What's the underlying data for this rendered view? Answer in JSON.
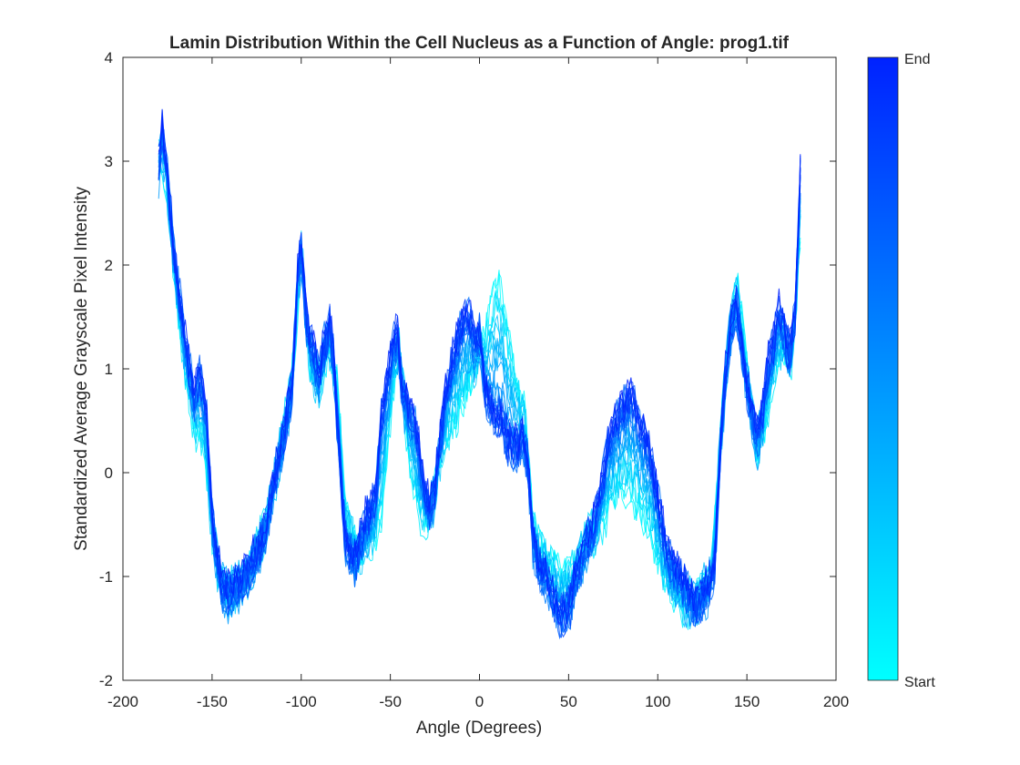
{
  "chart_data": {
    "type": "line",
    "title": "Lamin Distribution Within the Cell Nucleus as a Function of Angle: prog1.tif",
    "xlabel": "Angle (Degrees)",
    "ylabel": "Standardized Average Grayscale Pixel Intensity",
    "xlim": [
      -200,
      200
    ],
    "ylim": [
      -2,
      4
    ],
    "xticks": [
      "-200",
      "-150",
      "-100",
      "-50",
      "0",
      "50",
      "100",
      "150",
      "200"
    ],
    "yticks": [
      "-2",
      "-1",
      "0",
      "1",
      "2",
      "3",
      "4"
    ],
    "grid": false,
    "colormap": {
      "start_color": "#00ffff",
      "end_color": "#0022ff"
    },
    "colorbar": {
      "top_label": "End",
      "bottom_label": "Start",
      "placement": "right"
    },
    "series": [
      {
        "x": [
          -180,
          -178,
          -175,
          -172,
          -170,
          -165,
          -160,
          -157,
          -153,
          -150,
          -145,
          -140,
          -135,
          -130,
          -125,
          -120,
          -115,
          -110,
          -105,
          -102,
          -100,
          -97,
          -93,
          -90,
          -87,
          -84,
          -82,
          -80,
          -77,
          -75,
          -72,
          -70,
          -67,
          -64,
          -61,
          -58,
          -55,
          -52,
          -49,
          -46,
          -43,
          -40,
          -37,
          -34,
          -31,
          -28,
          -25,
          -22,
          -19,
          -16,
          -13,
          -10,
          -7,
          -5,
          -3,
          0,
          3,
          6,
          9,
          12,
          15,
          18,
          21,
          24,
          27,
          30,
          33,
          36,
          39,
          42,
          45,
          48,
          51,
          54,
          57,
          60,
          63,
          66,
          69,
          72,
          75,
          78,
          81,
          84,
          87,
          90,
          93,
          96,
          99,
          102,
          105,
          108,
          111,
          114,
          117,
          120,
          123,
          126,
          129,
          132,
          135,
          138,
          141,
          144,
          147,
          150,
          153,
          156,
          159,
          162,
          165,
          168,
          171,
          174,
          177,
          180
        ],
        "values": [
          2.9,
          3.3,
          2.8,
          2.2,
          1.9,
          1.2,
          0.7,
          0.9,
          0.5,
          -0.5,
          -1.1,
          -1.2,
          -1.1,
          -1.0,
          -0.8,
          -0.6,
          -0.1,
          0.3,
          0.8,
          1.9,
          2.1,
          1.4,
          1.1,
          0.9,
          1.2,
          1.4,
          1.1,
          0.5,
          -0.3,
          -0.7,
          -0.8,
          -0.9,
          -0.7,
          -0.5,
          -0.4,
          -0.2,
          0.5,
          0.8,
          1.2,
          1.3,
          0.7,
          0.6,
          0.5,
          0.2,
          -0.2,
          -0.4,
          -0.2,
          0.3,
          0.7,
          1.0,
          1.2,
          1.4,
          1.45,
          1.4,
          1.25,
          1.3,
          0.8,
          0.6,
          0.5,
          0.5,
          0.3,
          0.2,
          0.2,
          0.3,
          0.1,
          -0.7,
          -0.9,
          -1.0,
          -1.1,
          -1.3,
          -1.4,
          -1.4,
          -1.3,
          -1.0,
          -0.9,
          -0.7,
          -0.6,
          -0.4,
          -0.1,
          0.2,
          0.4,
          0.5,
          0.6,
          0.7,
          0.6,
          0.4,
          0.3,
          0.1,
          -0.2,
          -0.5,
          -0.8,
          -0.9,
          -1.0,
          -1.1,
          -1.2,
          -1.3,
          -1.3,
          -1.2,
          -1.1,
          -0.9,
          0.2,
          0.9,
          1.4,
          1.6,
          1.2,
          0.8,
          0.5,
          0.3,
          0.6,
          1.0,
          1.2,
          1.5,
          1.3,
          1.1,
          1.5,
          2.9
        ]
      },
      {
        "x": [
          -180,
          -175,
          -170,
          -165,
          -160,
          -155,
          -150,
          -145,
          -140,
          -135,
          -130,
          -125,
          -120,
          -115,
          -110,
          -105,
          -100,
          -95,
          -90,
          -85,
          -80,
          -75,
          -70,
          -65,
          -60,
          -55,
          -50,
          -45,
          -40,
          -35,
          -30,
          -25,
          -20,
          -15,
          -10,
          -5,
          0,
          5,
          10,
          15,
          20,
          25,
          30,
          35,
          40,
          45,
          50,
          55,
          60,
          65,
          70,
          75,
          80,
          85,
          90,
          95,
          100,
          105,
          110,
          115,
          120,
          125,
          130,
          135,
          140,
          145,
          150,
          155,
          160,
          165,
          170,
          175,
          180
        ],
        "values": [
          3.0,
          2.7,
          1.6,
          1.0,
          0.4,
          0.3,
          -0.6,
          -1.1,
          -1.2,
          -1.1,
          -1.0,
          -0.8,
          -0.5,
          -0.1,
          0.4,
          0.9,
          2.1,
          1.0,
          0.8,
          1.2,
          0.9,
          -0.4,
          -0.7,
          -0.8,
          -0.7,
          -0.5,
          0.5,
          1.2,
          0.2,
          -0.4,
          -0.5,
          -0.2,
          0.3,
          0.4,
          0.6,
          0.8,
          1.1,
          1.5,
          1.9,
          1.5,
          0.9,
          0.6,
          -0.5,
          -0.8,
          -0.9,
          -1.0,
          -1.0,
          -0.9,
          -0.7,
          -0.6,
          -0.5,
          -0.3,
          -0.2,
          -0.3,
          -0.4,
          -0.6,
          -0.9,
          -1.1,
          -1.2,
          -1.3,
          -1.3,
          -1.1,
          -1.0,
          0.3,
          1.3,
          1.8,
          1.0,
          0.2,
          0.4,
          0.9,
          1.2,
          1.0,
          2.2
        ]
      }
    ]
  }
}
